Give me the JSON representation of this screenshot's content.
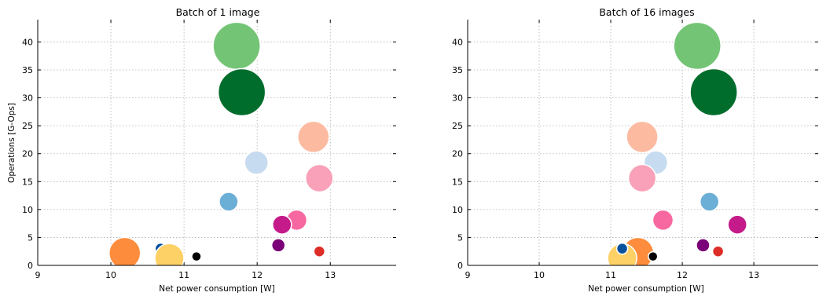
{
  "chart_data": [
    {
      "type": "scatter",
      "title": "Batch of 1 image",
      "xlabel": "Net power consumption [W]",
      "ylabel": "Operations [G-Ops]",
      "xlim": [
        9,
        13.9
      ],
      "ylim": [
        0,
        44
      ],
      "xticks": [
        9,
        10,
        11,
        12,
        13
      ],
      "yticks": [
        0,
        5,
        10,
        15,
        20,
        25,
        30,
        35,
        40
      ],
      "grid": true,
      "points": [
        {
          "x": 11.72,
          "y": 39.3,
          "color": "#74c476",
          "size": 60
        },
        {
          "x": 11.79,
          "y": 31.0,
          "color": "#006d2c",
          "size": 60
        },
        {
          "x": 12.77,
          "y": 23.0,
          "color": "#fcbba1",
          "size": 40
        },
        {
          "x": 11.99,
          "y": 18.4,
          "color": "#c6dbef",
          "size": 30
        },
        {
          "x": 12.85,
          "y": 15.6,
          "color": "#f8a1b8",
          "size": 35
        },
        {
          "x": 11.61,
          "y": 11.4,
          "color": "#6baed6",
          "size": 24
        },
        {
          "x": 12.54,
          "y": 8.1,
          "color": "#f768a1",
          "size": 26
        },
        {
          "x": 12.34,
          "y": 7.3,
          "color": "#c51b8a",
          "size": 24
        },
        {
          "x": 12.29,
          "y": 3.6,
          "color": "#7a0177",
          "size": 17
        },
        {
          "x": 12.85,
          "y": 2.5,
          "color": "#de2d26",
          "size": 14
        },
        {
          "x": 10.68,
          "y": 3.0,
          "color": "#08519c",
          "size": 14
        },
        {
          "x": 10.19,
          "y": 2.2,
          "color": "#fd8d3c",
          "size": 40
        },
        {
          "x": 10.8,
          "y": 1.3,
          "color": "#fed166",
          "size": 37
        },
        {
          "x": 11.17,
          "y": 1.6,
          "color": "#000000",
          "size": 12
        }
      ]
    },
    {
      "type": "scatter",
      "title": "Batch of 16 images",
      "xlabel": "Net power consumption [W]",
      "ylabel": "",
      "xlim": [
        9,
        13.9
      ],
      "ylim": [
        0,
        44
      ],
      "xticks": [
        9,
        10,
        11,
        12,
        13
      ],
      "yticks": [
        0,
        5,
        10,
        15,
        20,
        25,
        30,
        35,
        40
      ],
      "grid": true,
      "points": [
        {
          "x": 12.21,
          "y": 39.3,
          "color": "#74c476",
          "size": 60
        },
        {
          "x": 12.44,
          "y": 31.0,
          "color": "#006d2c",
          "size": 60
        },
        {
          "x": 11.44,
          "y": 23.0,
          "color": "#fcbba1",
          "size": 40
        },
        {
          "x": 11.63,
          "y": 18.4,
          "color": "#c6dbef",
          "size": 30
        },
        {
          "x": 11.44,
          "y": 15.6,
          "color": "#f8a1b8",
          "size": 35
        },
        {
          "x": 12.38,
          "y": 11.4,
          "color": "#6baed6",
          "size": 24
        },
        {
          "x": 11.73,
          "y": 8.1,
          "color": "#f768a1",
          "size": 26
        },
        {
          "x": 12.77,
          "y": 7.3,
          "color": "#c51b8a",
          "size": 24
        },
        {
          "x": 12.29,
          "y": 3.6,
          "color": "#7a0177",
          "size": 17
        },
        {
          "x": 12.5,
          "y": 2.5,
          "color": "#de2d26",
          "size": 14
        },
        {
          "x": 11.38,
          "y": 2.2,
          "color": "#fd8d3c",
          "size": 40
        },
        {
          "x": 11.16,
          "y": 1.3,
          "color": "#fed166",
          "size": 37
        },
        {
          "x": 11.16,
          "y": 3.0,
          "color": "#08519c",
          "size": 14
        },
        {
          "x": 11.59,
          "y": 1.6,
          "color": "#000000",
          "size": 12
        }
      ]
    }
  ]
}
